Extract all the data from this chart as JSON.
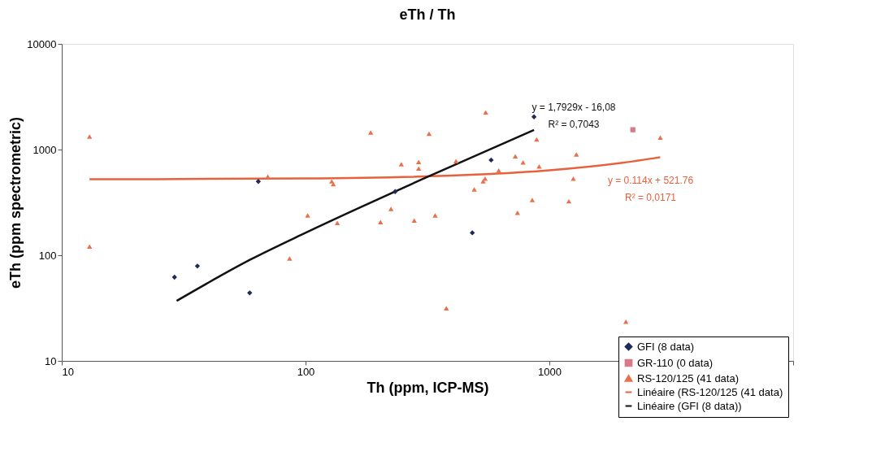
{
  "chart_data": {
    "type": "scatter",
    "title": "eTh / Th",
    "xlabel": "Th (ppm, ICP-MS)",
    "ylabel": "eTh (ppm spectrometric)",
    "log": "xy",
    "xlim": [
      10,
      10000
    ],
    "ylim": [
      10,
      10000
    ],
    "xticks": [
      10,
      100,
      1000,
      {
        "value": 10000,
        "label": null
      }
    ],
    "yticks": [
      10,
      100,
      1000,
      10000
    ],
    "grid": false,
    "legend": "bottom right",
    "series": [
      {
        "name": "GFI (8 data)",
        "marker": "diamond",
        "color": "#1f2a5a",
        "x": [
          29,
          36,
          59,
          64,
          233,
          483,
          577,
          865
        ],
        "values": [
          62,
          79,
          44,
          499,
          400,
          163,
          795,
          2040
        ]
      },
      {
        "name": "GR-110 (0 data)",
        "marker": "square",
        "color": "#d77a8a",
        "x": [
          2200
        ],
        "values": [
          1540
        ]
      },
      {
        "name": "RS-120/125 (41 data)",
        "marker": "triangle",
        "color": "#e8704a",
        "x": [
          13,
          13,
          70,
          128,
          130,
          102,
          135,
          86,
          185,
          321,
          548,
          887,
          2850,
          247,
          291,
          291,
          725,
          780,
          908,
          1290,
          620,
          535,
          545,
          1254,
          492,
          224,
          203,
          279,
          340,
          851,
          1202,
          740,
          378,
          2060,
          414
        ],
        "values": [
          1330,
          121,
          555,
          500,
          470,
          238,
          202,
          93,
          1450,
          1410,
          2250,
          1250,
          1300,
          728,
          762,
          662,
          863,
          757,
          693,
          899,
          634,
          501,
          531,
          531,
          420,
          274,
          206,
          213,
          238,
          333,
          324,
          252,
          31.5,
          23.5,
          777
        ]
      },
      {
        "name": "Linéaire (RS-120/125 (41 data)",
        "type": "line",
        "line_style": "solid",
        "color": "#e8603c",
        "x": [
          13,
          100,
          500,
          1000,
          2000,
          2850
        ],
        "values": [
          523,
          533,
          579,
          636,
          750,
          847
        ]
      },
      {
        "name": "Linéaire (GFI (8 data))",
        "type": "line",
        "line_style": "solid",
        "color": "#111111",
        "x": [
          29.6,
          60,
          100,
          300,
          865
        ],
        "values": [
          37,
          92,
          163,
          522,
          1535
        ]
      }
    ],
    "annotations": [
      "y = 1,7929x - 16,08",
      "R² = 0,7043",
      "y = 0.114x + 521.76",
      "R² = 0,0171"
    ]
  }
}
